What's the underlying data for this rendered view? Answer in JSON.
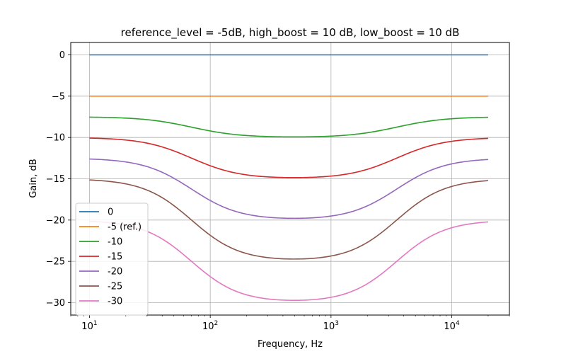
{
  "chart_data": {
    "type": "line",
    "title": "reference_level = -5dB, high_boost = 10 dB, low_boost = 10 dB",
    "xlabel": "Frequency, Hz",
    "ylabel": "Gain, dB",
    "xscale": "log",
    "xlim": [
      7,
      30000
    ],
    "ylim": [
      -31.5,
      1.5
    ],
    "grid": true,
    "legend_position": "lower-left",
    "x_ticks": [
      {
        "value": 10,
        "base": "10",
        "exp": "1"
      },
      {
        "value": 100,
        "base": "10",
        "exp": "2"
      },
      {
        "value": 1000,
        "base": "10",
        "exp": "3"
      },
      {
        "value": 10000,
        "base": "10",
        "exp": "4"
      }
    ],
    "y_ticks": [
      {
        "value": 0,
        "label": "0"
      },
      {
        "value": -5,
        "label": "−5"
      },
      {
        "value": -10,
        "label": "−10"
      },
      {
        "value": -15,
        "label": "−15"
      },
      {
        "value": -20,
        "label": "−20"
      },
      {
        "value": -25,
        "label": "−25"
      },
      {
        "value": -30,
        "label": "−30"
      }
    ],
    "x_range": [
      10,
      20000
    ],
    "transition": {
      "low_corner_hz": 70,
      "high_corner_hz": 3500,
      "steepness": 5
    },
    "series": [
      {
        "name": "0",
        "color": "#1f77b4",
        "mid_gain": 0,
        "edge_gain": 0
      },
      {
        "name": "-5 (ref.)",
        "color": "#ff7f0e",
        "mid_gain": -5,
        "edge_gain": -5
      },
      {
        "name": "-10",
        "color": "#2ca02c",
        "mid_gain": -10,
        "edge_gain": -7.5
      },
      {
        "name": "-15",
        "color": "#d62728",
        "mid_gain": -15,
        "edge_gain": -10
      },
      {
        "name": "-20",
        "color": "#9467bd",
        "mid_gain": -20,
        "edge_gain": -12.5
      },
      {
        "name": "-25",
        "color": "#8c564b",
        "mid_gain": -25,
        "edge_gain": -15
      },
      {
        "name": "-30",
        "color": "#e377c2",
        "mid_gain": -30,
        "edge_gain": -20
      }
    ]
  }
}
